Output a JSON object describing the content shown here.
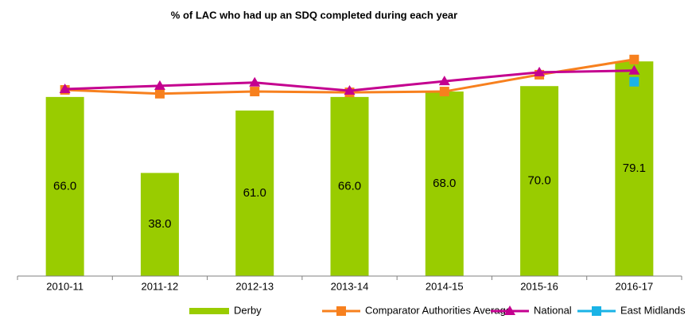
{
  "chart_data": {
    "type": "bar",
    "title": "% of LAC who had up an SDQ completed during each year",
    "categories": [
      "2010-11",
      "2011-12",
      "2012-13",
      "2013-14",
      "2014-15",
      "2015-16",
      "2016-17"
    ],
    "ylim": [
      0,
      90
    ],
    "legend": "bottom",
    "series": [
      {
        "name": "Derby",
        "type": "bar",
        "color": "#99cc00",
        "values": [
          66,
          38,
          61,
          66,
          68,
          70,
          79.1
        ],
        "value_labels": [
          "66.0",
          "38.0",
          "61.0",
          "66.0",
          "68.0",
          "70.0",
          "79.1"
        ]
      },
      {
        "name": "Comparator Authorities Average",
        "type": "line",
        "marker": "square",
        "color": "#f7801e",
        "values": [
          68.6,
          67.2,
          68.0,
          67.7,
          68.0,
          74.2,
          79.8
        ]
      },
      {
        "name": "National",
        "type": "line",
        "marker": "triangle",
        "color": "#c4008f",
        "values": [
          68.9,
          70.1,
          71.3,
          68.3,
          71.8,
          75.1,
          75.7
        ]
      },
      {
        "name": "East Midlands",
        "type": "line",
        "marker": "square",
        "color": "#1ab3e6",
        "values": [
          null,
          null,
          null,
          null,
          null,
          null,
          71.6
        ]
      }
    ]
  }
}
